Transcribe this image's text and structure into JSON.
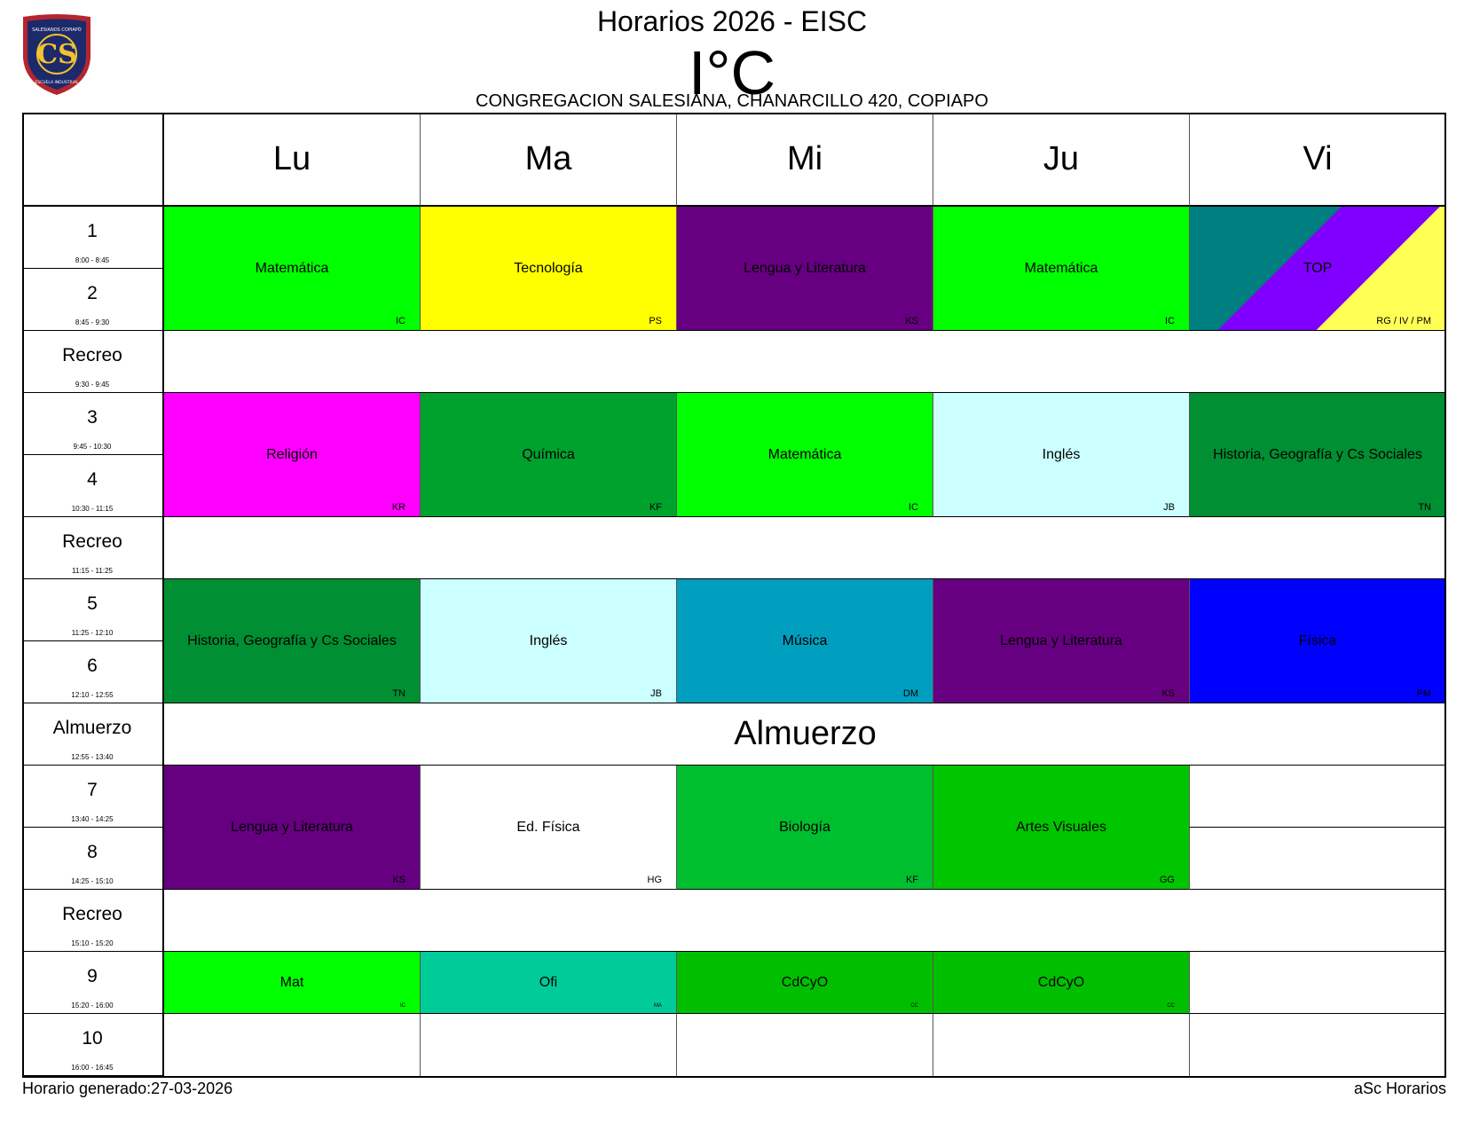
{
  "header": {
    "title": "Horarios 2026 - EISC",
    "class_name": "I°C",
    "address": "CONGREGACION SALESIANA, CHANARCILLO 420, COPIAPO",
    "logo_icon": "school-crest-icon",
    "logo_text": "SALESIANOS COPIAPÓ · CS · ESCUELA INDUSTRIAL"
  },
  "days": [
    "Lu",
    "Ma",
    "Mi",
    "Ju",
    "Vi"
  ],
  "periods": [
    {
      "label": "1",
      "time": "8:00 - 8:45"
    },
    {
      "label": "2",
      "time": "8:45 - 9:30"
    },
    {
      "label": "Recreo",
      "time": "9:30 - 9:45"
    },
    {
      "label": "3",
      "time": "9:45 - 10:30"
    },
    {
      "label": "4",
      "time": "10:30 - 11:15"
    },
    {
      "label": "Recreo",
      "time": "11:15 - 11:25"
    },
    {
      "label": "5",
      "time": "11:25 - 12:10"
    },
    {
      "label": "6",
      "time": "12:10 - 12:55"
    },
    {
      "label": "Almuerzo",
      "time": "12:55 - 13:40"
    },
    {
      "label": "7",
      "time": "13:40 - 14:25"
    },
    {
      "label": "8",
      "time": "14:25 - 15:10"
    },
    {
      "label": "Recreo",
      "time": "15:10 - 15:20"
    },
    {
      "label": "9",
      "time": "15:20 - 16:00"
    },
    {
      "label": "10",
      "time": "16:00 - 16:45"
    }
  ],
  "breaks": [
    {
      "period": 2,
      "label": ""
    },
    {
      "period": 5,
      "label": ""
    },
    {
      "period": 8,
      "label": "Almuerzo"
    },
    {
      "period": 11,
      "label": ""
    }
  ],
  "lessons": [
    {
      "day": 0,
      "period": 0,
      "span": 2,
      "subject": "Matemática",
      "teacher": "IC",
      "color": "#00ff00",
      "text_color": "#000000"
    },
    {
      "day": 1,
      "period": 0,
      "span": 2,
      "subject": "Tecnología",
      "teacher": "PS",
      "color": "#ffff00",
      "text_color": "#000000"
    },
    {
      "day": 2,
      "period": 0,
      "span": 2,
      "subject": "Lengua y Literatura",
      "teacher": "KS",
      "color": "#660080",
      "text_color": "#000000"
    },
    {
      "day": 3,
      "period": 0,
      "span": 2,
      "subject": "Matemática",
      "teacher": "IC",
      "color": "#00ff00",
      "text_color": "#000000"
    },
    {
      "day": 4,
      "period": 0,
      "span": 2,
      "subject": "TOP",
      "teacher": "RG / IV / PM",
      "color": "#007f80",
      "stripes": [
        "#007f80",
        "#7f00ff",
        "#ffff55"
      ],
      "text_color": "#000000"
    },
    {
      "day": 0,
      "period": 3,
      "span": 2,
      "subject": "Religión",
      "teacher": "KR",
      "color": "#ff00ff",
      "text_color": "#000000"
    },
    {
      "day": 1,
      "period": 3,
      "span": 2,
      "subject": "Química",
      "teacher": "KF",
      "color": "#00a22e",
      "text_color": "#000000"
    },
    {
      "day": 2,
      "period": 3,
      "span": 2,
      "subject": "Matemática",
      "teacher": "IC",
      "color": "#00ff00",
      "text_color": "#000000"
    },
    {
      "day": 3,
      "period": 3,
      "span": 2,
      "subject": "Inglés",
      "teacher": "JB",
      "color": "#ccffff",
      "text_color": "#000000"
    },
    {
      "day": 4,
      "period": 3,
      "span": 2,
      "subject": "Historia, Geografía y Cs Sociales",
      "teacher": "TN",
      "color": "#008f32",
      "text_color": "#000000"
    },
    {
      "day": 0,
      "period": 6,
      "span": 2,
      "subject": "Historia, Geografía y Cs Sociales",
      "teacher": "TN",
      "color": "#008f32",
      "text_color": "#000000"
    },
    {
      "day": 1,
      "period": 6,
      "span": 2,
      "subject": "Inglés",
      "teacher": "JB",
      "color": "#ccffff",
      "text_color": "#000000"
    },
    {
      "day": 2,
      "period": 6,
      "span": 2,
      "subject": "Música",
      "teacher": "DM",
      "color": "#009fbf",
      "text_color": "#000000"
    },
    {
      "day": 3,
      "period": 6,
      "span": 2,
      "subject": "Lengua y Literatura",
      "teacher": "KS",
      "color": "#660080",
      "text_color": "#000000"
    },
    {
      "day": 4,
      "period": 6,
      "span": 2,
      "subject": "Física",
      "teacher": "PM",
      "color": "#0000ff",
      "text_color": "#000000"
    },
    {
      "day": 0,
      "period": 9,
      "span": 2,
      "subject": "Lengua y Literatura",
      "teacher": "KS",
      "color": "#660080",
      "text_color": "#000000"
    },
    {
      "day": 1,
      "period": 9,
      "span": 2,
      "subject": "Ed. Física",
      "teacher": "HG",
      "color": "#ffffff",
      "text_color": "#000000"
    },
    {
      "day": 2,
      "period": 9,
      "span": 2,
      "subject": "Biología",
      "teacher": "KF",
      "color": "#00bf2f",
      "text_color": "#000000"
    },
    {
      "day": 3,
      "period": 9,
      "span": 2,
      "subject": "Artes Visuales",
      "teacher": "GG",
      "color": "#00c600",
      "text_color": "#000000"
    },
    {
      "day": 0,
      "period": 12,
      "span": 1,
      "subject": "Mat",
      "teacher": "IC",
      "color": "#00ff00",
      "text_color": "#000000",
      "small_teacher": true
    },
    {
      "day": 1,
      "period": 12,
      "span": 1,
      "subject": "Ofi",
      "teacher": "MA",
      "color": "#00cc99",
      "text_color": "#000000",
      "small_teacher": true
    },
    {
      "day": 2,
      "period": 12,
      "span": 1,
      "subject": "CdCyO",
      "teacher": "CC",
      "color": "#00bf00",
      "text_color": "#000000",
      "small_teacher": true
    },
    {
      "day": 3,
      "period": 12,
      "span": 1,
      "subject": "CdCyO",
      "teacher": "CC",
      "color": "#00bf00",
      "text_color": "#000000",
      "small_teacher": true
    }
  ],
  "empty_cells": [
    {
      "day": 4,
      "period": 9
    },
    {
      "day": 4,
      "period": 10
    },
    {
      "day": 4,
      "period": 12
    },
    {
      "day": 0,
      "period": 13
    },
    {
      "day": 1,
      "period": 13
    },
    {
      "day": 2,
      "period": 13
    },
    {
      "day": 3,
      "period": 13
    },
    {
      "day": 4,
      "period": 13
    }
  ],
  "footer": {
    "generated": "Horario generado:27-03-2026",
    "brand": "aSc Horarios"
  }
}
